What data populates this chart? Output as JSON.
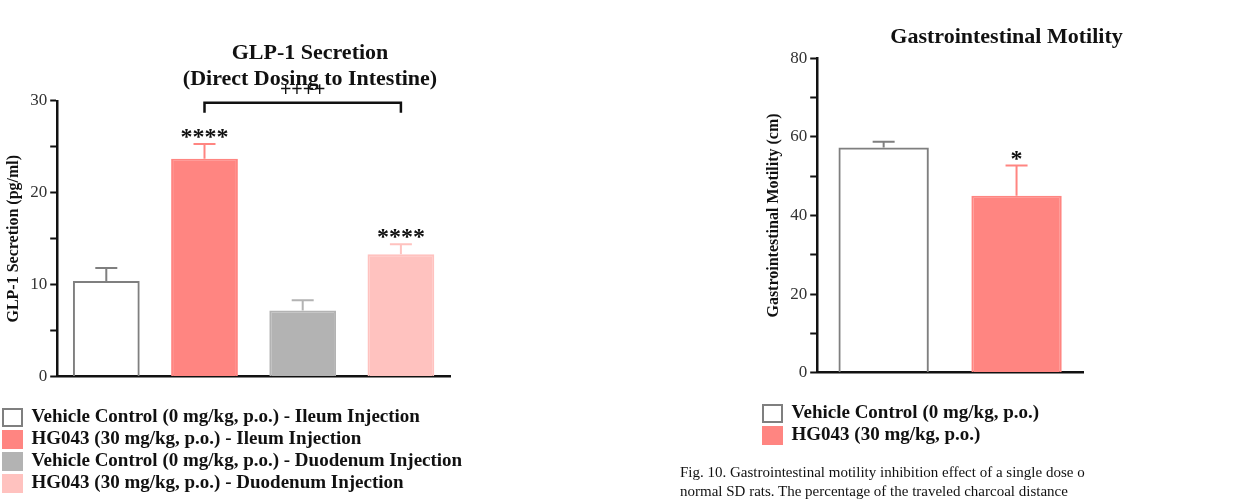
{
  "chart_data": [
    {
      "type": "bar",
      "title": "GLP-1 Secretion\n(Direct Dosing to Intestine)",
      "ylabel": "GLP-1 Secretion (pg/ml)",
      "categories": [
        null,
        null,
        null,
        null
      ],
      "series": [
        {
          "name": "Vehicle Control (0 mg/kg, p.o.) - Ileum Injection",
          "color": "#7f7f7f",
          "values": [
            10.4,
            null,
            null,
            null
          ],
          "errors": [
            [
              10.4,
              11.8
            ],
            null,
            null,
            null
          ]
        },
        {
          "name": "HG043 (30 mg/kg, p.o.) - Ileum Injection",
          "color": "#ff8581",
          "values": [
            null,
            23.7,
            null,
            null
          ],
          "errors": [
            null,
            [
              23.7,
              25.3
            ],
            null,
            null
          ],
          "value_labels": [
            null,
            "****",
            null,
            null
          ]
        },
        {
          "name": "Vehicle Control (0 mg/kg, p.o.) - Duodenum Injection",
          "color": "#b3b3b3",
          "values": [
            null,
            null,
            7.2,
            null
          ],
          "errors": [
            null,
            null,
            [
              7.2,
              8.3
            ],
            null
          ]
        },
        {
          "name": "HG043 (30 mg/kg, p.o.) - Duodenum Injection",
          "color": "#ffc2bf",
          "values": [
            null,
            null,
            null,
            13.3
          ],
          "errors": [
            null,
            null,
            null,
            [
              13.3,
              14.4
            ]
          ],
          "value_labels": [
            null,
            null,
            null,
            "****"
          ]
        }
      ],
      "ylim": [
        0,
        30
      ],
      "yticks": [
        0,
        {
          "value": 5,
          "label": null
        },
        10,
        {
          "value": 15,
          "label": null
        },
        20,
        {
          "value": 25,
          "label": null
        },
        30
      ],
      "annotations": [
        "++++"
      ],
      "grid": false,
      "legend": "bottom"
    },
    {
      "type": "bar",
      "title": "Gastrointestinal Motility",
      "ylabel": "Gastrointestinal Motility (cm)",
      "categories": [
        null,
        null
      ],
      "series": [
        {
          "name": "Vehicle Control (0 mg/kg, p.o.)",
          "color": "#7f7f7f",
          "values": [
            57.3,
            null
          ],
          "errors": [
            [
              57.3,
              58.8
            ],
            null
          ]
        },
        {
          "name": "HG043 (30 mg/kg, p.o.)",
          "color": "#ff8581",
          "values": [
            null,
            45.0
          ],
          "errors": [
            null,
            [
              45.0,
              52.7
            ]
          ],
          "value_labels": [
            null,
            "*"
          ]
        }
      ],
      "ylim": [
        0,
        80
      ],
      "yticks": [
        0,
        {
          "value": 10,
          "label": null
        },
        20,
        {
          "value": 30,
          "label": null
        },
        40,
        {
          "value": 50,
          "label": null
        },
        60,
        {
          "value": 70,
          "label": null
        },
        80
      ],
      "annotations": [
        "Fig. 10. Gastrointestinal motility inhibition effect of a single dose o",
        "normal SD rats. The percentage of the traveled charcoal distance"
      ],
      "grid": false,
      "legend": "bottom"
    }
  ]
}
